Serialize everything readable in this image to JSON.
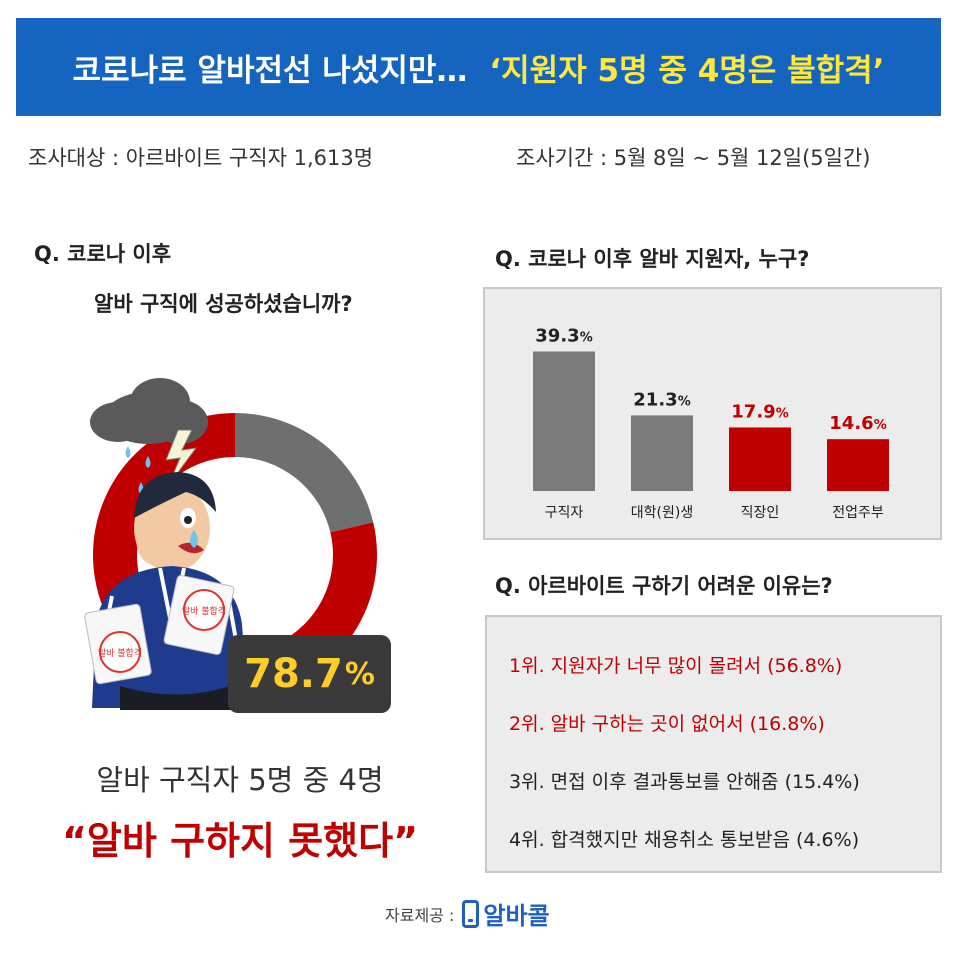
{
  "header": {
    "title_main": "코로나로 알바전선 나섰지만…",
    "title_highlight": "‘지원자 5명 중 4명은 불합격’"
  },
  "survey": {
    "target": "조사대상 : 아르바이트 구직자 1,613명",
    "period": "조사기간 : 5월 8일 ~ 5월 12일(5일간)"
  },
  "left": {
    "question_line1": "Q. 코로나 이후",
    "question_line2": "알바 구직에 성공하셨습니까?",
    "stamp_text": "알바 불합격",
    "percent": "78.7",
    "percent_unit": "%",
    "summary1": "알바 구직자 5명 중 4명",
    "summary2": "“알바 구하지 못했다”"
  },
  "chart_question": "Q. 코로나 이후 알바 지원자, 누구?",
  "chart_data": [
    {
      "type": "pie",
      "categories": [
        "",
        ""
      ],
      "values": [
        78.7,
        21.3
      ],
      "colors": [
        "#c00000",
        "#6f6f6f"
      ],
      "title": "Q. 코로나 이후 알바 구직에 성공하셨습니까?"
    },
    {
      "type": "bar",
      "title": "Q. 코로나 이후 알바 지원자, 누구?",
      "categories": [
        "구직자",
        "대학(원)생",
        "직장인",
        "전업주부"
      ],
      "values": [
        39.3,
        21.3,
        17.9,
        14.6
      ],
      "labels": [
        "39.3",
        "21.3",
        "17.9",
        "14.6"
      ],
      "unit": "%",
      "colors": [
        "#7a7a7a",
        "#7a7a7a",
        "#c00000",
        "#c00000"
      ],
      "ylim": [
        0,
        40
      ],
      "grid": false
    }
  ],
  "reasons": {
    "question": "Q. 아르바이트 구하기 어려운 이유는?",
    "items": [
      "1위. 지원자가 너무 많이 몰려서 (56.8%)",
      "2위. 알바 구하는 곳이 없어서 (16.8%)",
      "3위. 면접 이후 결과통보를 안해줌 (15.4%)",
      "4위. 합격했지만 채용취소 통보받음 (4.6%)"
    ]
  },
  "source": {
    "label": "자료제공 :",
    "brand": "알바콜",
    "logo_icon": "phone-icon"
  }
}
